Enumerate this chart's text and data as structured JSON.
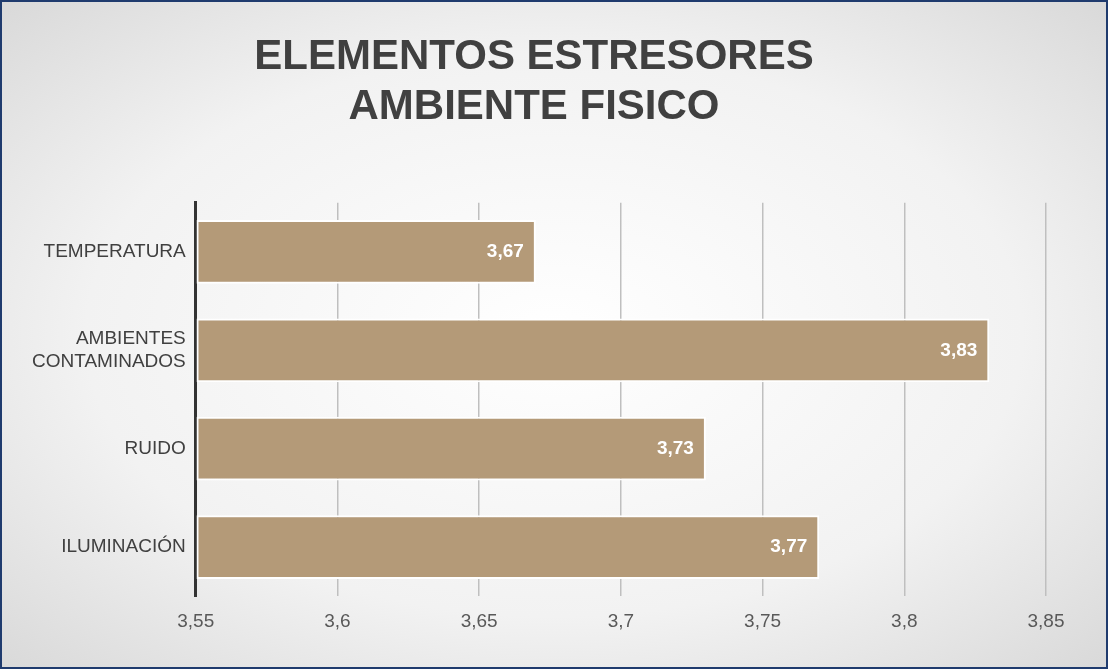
{
  "chart_data": {
    "type": "bar",
    "orientation": "horizontal",
    "title": "ELEMENTOS ESTRESORES AMBIENTE FISICO",
    "categories": [
      "TEMPERATURA",
      "AMBIENTES CONTAMINADOS",
      "RUIDO",
      "ILUMINACIÓN"
    ],
    "values": [
      3.67,
      3.83,
      3.73,
      3.77
    ],
    "value_labels": [
      "3,67",
      "3,83",
      "3,73",
      "3,77"
    ],
    "color": "#b49a78",
    "xlim": [
      3.55,
      3.85
    ],
    "xticks": [
      {
        "value": 3.55,
        "label": "3,55"
      },
      {
        "value": 3.6,
        "label": "3,6"
      },
      {
        "value": 3.65,
        "label": "3,65"
      },
      {
        "value": 3.7,
        "label": "3,7"
      },
      {
        "value": 3.75,
        "label": "3,75"
      },
      {
        "value": 3.8,
        "label": "3,8"
      },
      {
        "value": 3.85,
        "label": "3,85"
      }
    ],
    "grid": "x",
    "legend": false
  }
}
